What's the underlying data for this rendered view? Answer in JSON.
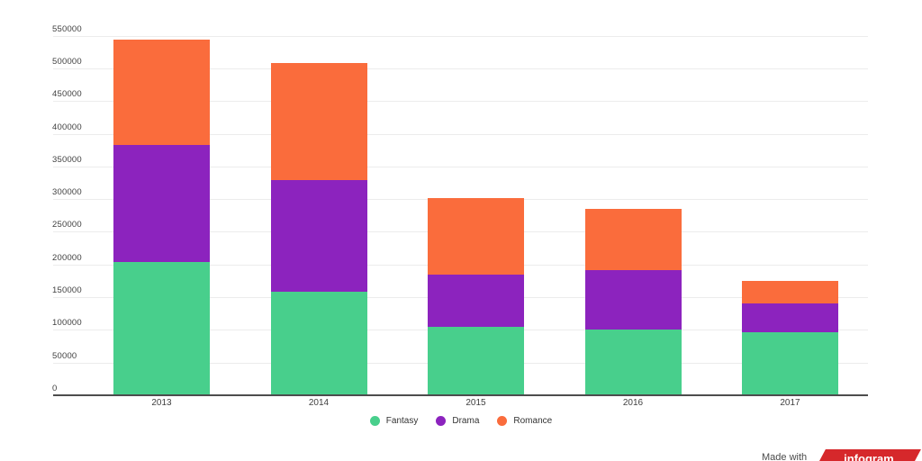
{
  "chart_data": {
    "type": "bar",
    "stacked": true,
    "title": "",
    "categories": [
      "2013",
      "2014",
      "2015",
      "2016",
      "2017"
    ],
    "series": [
      {
        "name": "Fantasy",
        "color": "#48CF8C",
        "values": [
          204000,
          159000,
          104000,
          100000,
          97000
        ]
      },
      {
        "name": "Drama",
        "color": "#8C23BE",
        "values": [
          179000,
          170000,
          80000,
          92000,
          43000
        ]
      },
      {
        "name": "Romance",
        "color": "#FA6C3C",
        "values": [
          161000,
          179000,
          118000,
          93000,
          35000
        ]
      }
    ],
    "y_axis": {
      "min": 0,
      "max": 550000,
      "step": 50000,
      "tick_labels": [
        "0",
        "50000",
        "100000",
        "150000",
        "200000",
        "250000",
        "300000",
        "350000",
        "400000",
        "450000",
        "500000",
        "550000"
      ]
    },
    "x_axis": {
      "tick_labels": [
        "2013",
        "2014",
        "2015",
        "2016",
        "2017"
      ]
    },
    "legend": {
      "position": "bottom",
      "items": [
        "Fantasy",
        "Drama",
        "Romance"
      ]
    },
    "grid": true
  },
  "footer": {
    "made_with_label": "Made with",
    "brand_label": "infogram",
    "brand_color": "#D6282B"
  },
  "colors": {
    "background": "#FFFFFF",
    "gridline": "#ECECEC",
    "axis_line": "#4D4D4D",
    "tick_text": "#3F3F3F",
    "legend_text": "#333333"
  }
}
